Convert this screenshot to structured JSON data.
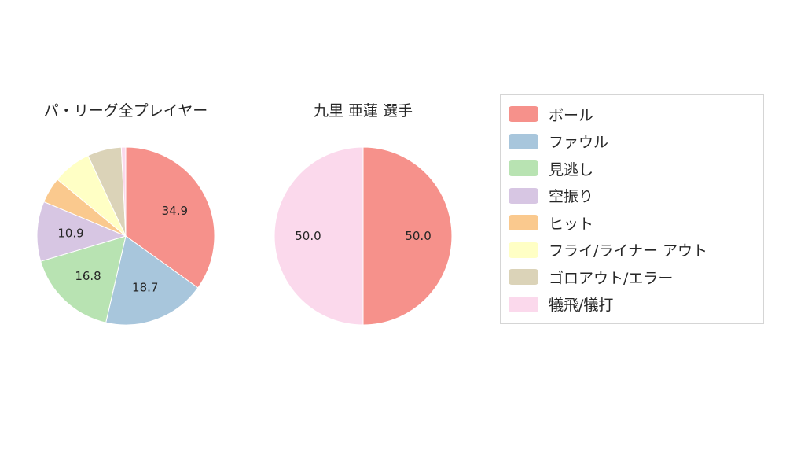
{
  "chart_data": [
    {
      "type": "pie",
      "title": "パ・リーグ全プレイヤー",
      "start_angle": "top",
      "direction": "clockwise",
      "slices": [
        {
          "label": "ボール",
          "value": 34.9,
          "display": "34.9",
          "color": "#F6918B"
        },
        {
          "label": "ファウル",
          "value": 18.7,
          "display": "18.7",
          "color": "#A8C6DC"
        },
        {
          "label": "見逃し",
          "value": 16.8,
          "display": "16.8",
          "color": "#B8E3B2"
        },
        {
          "label": "空振り",
          "value": 10.9,
          "display": "10.9",
          "color": "#D7C6E3"
        },
        {
          "label": "ヒット",
          "value": 4.7,
          "display": "",
          "color": "#FAC98E"
        },
        {
          "label": "フライ/ライナー アウト",
          "value": 7.0,
          "display": "",
          "color": "#FFFFC5"
        },
        {
          "label": "ゴロアウト/エラー",
          "value": 6.2,
          "display": "",
          "color": "#DBD3B8"
        },
        {
          "label": "犠飛/犠打",
          "value": 0.8,
          "display": "",
          "color": "#FBD9EC"
        }
      ]
    },
    {
      "type": "pie",
      "title": "九里 亜蓮  選手",
      "start_angle": "top",
      "direction": "clockwise",
      "slices": [
        {
          "label": "ボール",
          "value": 50.0,
          "display": "50.0",
          "color": "#F6918B"
        },
        {
          "label": "犠飛/犠打",
          "value": 50.0,
          "display": "50.0",
          "color": "#FBD9EC"
        }
      ]
    }
  ],
  "legend": {
    "items": [
      {
        "label": "ボール",
        "color": "#F6918B"
      },
      {
        "label": "ファウル",
        "color": "#A8C6DC"
      },
      {
        "label": "見逃し",
        "color": "#B8E3B2"
      },
      {
        "label": "空振り",
        "color": "#D7C6E3"
      },
      {
        "label": "ヒット",
        "color": "#FAC98E"
      },
      {
        "label": "フライ/ライナー アウト",
        "color": "#FFFFC5"
      },
      {
        "label": "ゴロアウト/エラー",
        "color": "#DBD3B8"
      },
      {
        "label": "犠飛/犠打",
        "color": "#FBD9EC"
      }
    ]
  }
}
